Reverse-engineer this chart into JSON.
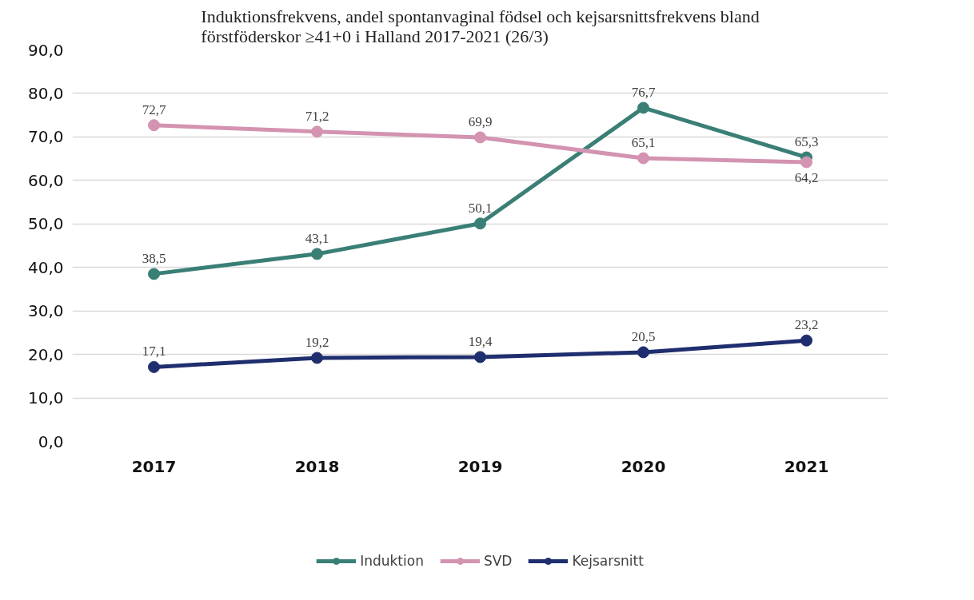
{
  "chart_data": {
    "type": "line",
    "title": "Induktionsfrekvens, andel spontanvaginal födsel och kejsarsnittsfrekvens bland\nförstföderskor ≥41+0 i Halland 2017-2021 (26/3)",
    "categories": [
      "2017",
      "2018",
      "2019",
      "2020",
      "2021"
    ],
    "series": [
      {
        "name": "Induktion",
        "color": "#3a7f76",
        "values": [
          38.5,
          43.1,
          50.1,
          76.7,
          65.3
        ],
        "value_labels": [
          "38,5",
          "43,1",
          "50,1",
          "76,7",
          "65,3"
        ]
      },
      {
        "name": "SVD",
        "color": "#d393b1",
        "values": [
          72.7,
          71.2,
          69.9,
          65.1,
          64.2
        ],
        "value_labels": [
          "72,7",
          "71,2",
          "69,9",
          "65,1",
          "64,2"
        ]
      },
      {
        "name": "Kejsarsnitt",
        "color": "#1f2e6e",
        "values": [
          17.1,
          19.2,
          19.4,
          20.5,
          23.2
        ],
        "value_labels": [
          "17,1",
          "19,2",
          "19,4",
          "20,5",
          "23,2"
        ]
      }
    ],
    "ylim": [
      0,
      90
    ],
    "yticks": [
      {
        "value": 0,
        "label": "0,0"
      },
      {
        "value": 10,
        "label": "10,0"
      },
      {
        "value": 20,
        "label": "20,0"
      },
      {
        "value": 30,
        "label": "30,0"
      },
      {
        "value": 40,
        "label": "40,0"
      },
      {
        "value": 50,
        "label": "50,0"
      },
      {
        "value": 60,
        "label": "60,0"
      },
      {
        "value": 70,
        "label": "70,0"
      },
      {
        "value": 80,
        "label": "80,0"
      },
      {
        "value": 90,
        "label": "90,0"
      }
    ],
    "grid": "y",
    "legend": "bottom",
    "marker": "circle",
    "line_style": "solid"
  }
}
